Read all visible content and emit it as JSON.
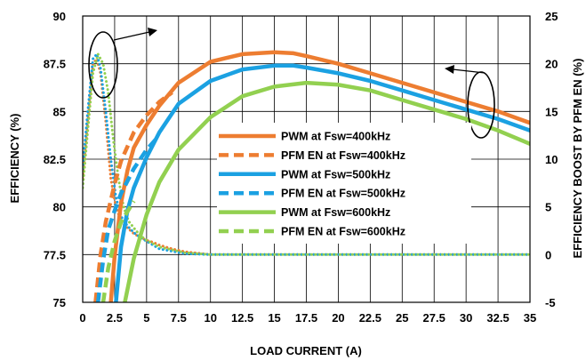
{
  "chart_data": {
    "type": "line",
    "xlabel": "LOAD CURRENT (A)",
    "ylabel": "EFFICIENCY (%)",
    "y2label": "EFFICIENCY BOOST BY PFM EN (%)",
    "xlim": [
      0,
      35
    ],
    "ylim": [
      75,
      90
    ],
    "y2lim": [
      -5,
      25
    ],
    "xticks": [
      "0",
      "2.5",
      "5",
      "7.5",
      "10",
      "12.5",
      "15",
      "17.5",
      "20",
      "22.5",
      "25",
      "27.5",
      "30",
      "32.5",
      "35"
    ],
    "yticks": [
      "75",
      "77.5",
      "80",
      "82.5",
      "85",
      "87.5",
      "90"
    ],
    "y2ticks": [
      "-5",
      "0",
      "5",
      "10",
      "15",
      "20",
      "25"
    ],
    "grid": true,
    "legend_position": "center-right",
    "series": [
      {
        "name": "PWM at Fsw=400kHz",
        "axis": "left",
        "style": "solid",
        "color": "#ED7D31",
        "x": [
          2.2,
          2.5,
          3,
          3.5,
          4,
          5,
          6,
          7.5,
          10,
          12.5,
          15,
          16.5,
          17.5,
          20,
          22.5,
          25,
          27.5,
          30,
          32.5,
          35
        ],
        "y": [
          75,
          77.4,
          80.2,
          81.9,
          83.1,
          84.3,
          85.3,
          86.5,
          87.6,
          88,
          88.1,
          88.05,
          87.9,
          87.5,
          87,
          86.5,
          86,
          85.5,
          85,
          84.4
        ]
      },
      {
        "name": "PFM EN at Fsw=400kHz",
        "axis": "left",
        "style": "dashed",
        "color": "#ED7D31",
        "x": [
          1,
          1.4,
          1.8,
          2.5,
          3,
          4,
          5,
          6,
          7
        ],
        "y": [
          75,
          77.5,
          79.2,
          81.2,
          82.4,
          83.9,
          84.8,
          85.5,
          86
        ]
      },
      {
        "name": "PWM at Fsw=500kHz",
        "axis": "left",
        "style": "solid",
        "color": "#1BA1E2",
        "x": [
          2.6,
          3,
          3.5,
          4,
          5,
          6,
          7.5,
          10,
          12.5,
          15,
          16.5,
          17.5,
          20,
          22.5,
          25,
          27.5,
          30,
          32.5,
          35
        ],
        "y": [
          75,
          77.9,
          79.8,
          81,
          82.6,
          83.9,
          85.4,
          86.6,
          87.2,
          87.4,
          87.4,
          87.3,
          87,
          86.6,
          86.1,
          85.6,
          85.1,
          84.6,
          84
        ]
      },
      {
        "name": "PFM EN at Fsw=500kHz",
        "axis": "left",
        "style": "dashed",
        "color": "#1BA1E2",
        "x": [
          1.2,
          1.6,
          2,
          2.5,
          3,
          4,
          5,
          5.8
        ],
        "y": [
          75,
          77.2,
          78.8,
          79.8,
          80.7,
          82,
          83,
          83.6
        ]
      },
      {
        "name": "PWM at Fsw=600kHz",
        "axis": "left",
        "style": "solid",
        "color": "#92D050",
        "x": [
          3.3,
          4,
          5,
          6,
          7.5,
          10,
          12.5,
          15,
          17.5,
          20,
          22.5,
          25,
          27.5,
          30,
          32.5,
          35
        ],
        "y": [
          75,
          77.3,
          79.6,
          81.3,
          83,
          84.7,
          85.8,
          86.3,
          86.5,
          86.4,
          86.1,
          85.6,
          85.1,
          84.6,
          84,
          83.3
        ]
      },
      {
        "name": "PFM EN at Fsw=600kHz",
        "axis": "left",
        "style": "dashed",
        "color": "#92D050",
        "x": [
          1.6,
          2,
          2.5,
          3,
          4
        ],
        "y": [
          75,
          76.8,
          78.2,
          79.2,
          80.3
        ]
      },
      {
        "name": "",
        "axis": "right",
        "style": "dotted",
        "color": "#ED7D31",
        "x": [
          0,
          0.4,
          0.8,
          1.1,
          1.4,
          1.8,
          2.2,
          2.6,
          3,
          3.5,
          4,
          4.5,
          5,
          5.5,
          6,
          7,
          8,
          10,
          15,
          20,
          25,
          30,
          35
        ],
        "y": [
          8,
          14,
          20,
          20.5,
          19,
          14,
          8,
          5,
          3.5,
          2.8,
          2.2,
          1.8,
          1.5,
          1.3,
          1,
          0.6,
          0.3,
          0,
          0,
          0,
          0,
          0,
          0
        ]
      },
      {
        "name": "",
        "axis": "right",
        "style": "dotted",
        "color": "#1BA1E2",
        "x": [
          0,
          0.4,
          0.8,
          1.1,
          1.4,
          1.8,
          2.2,
          2.6,
          3,
          3.5,
          4,
          4.5,
          5,
          6,
          8,
          10,
          15,
          20,
          25,
          30,
          35
        ],
        "y": [
          9,
          15,
          20.5,
          21,
          19.5,
          15,
          10,
          6,
          4,
          3,
          2.3,
          1.8,
          1.4,
          0.6,
          0.1,
          0,
          0,
          0,
          0,
          0,
          0
        ]
      },
      {
        "name": "",
        "axis": "right",
        "style": "dotted",
        "color": "#92D050",
        "x": [
          0,
          0.4,
          0.8,
          1.2,
          1.6,
          2,
          2.4,
          2.8,
          3.2,
          3.6,
          4,
          4.5,
          5,
          6,
          8,
          10,
          15,
          20,
          25,
          30,
          35
        ],
        "y": [
          7,
          13,
          19,
          21,
          20,
          17,
          12,
          8,
          5,
          3.5,
          2.8,
          2,
          1.5,
          0.8,
          0.2,
          0,
          0,
          0,
          0,
          0,
          0
        ]
      }
    ]
  }
}
